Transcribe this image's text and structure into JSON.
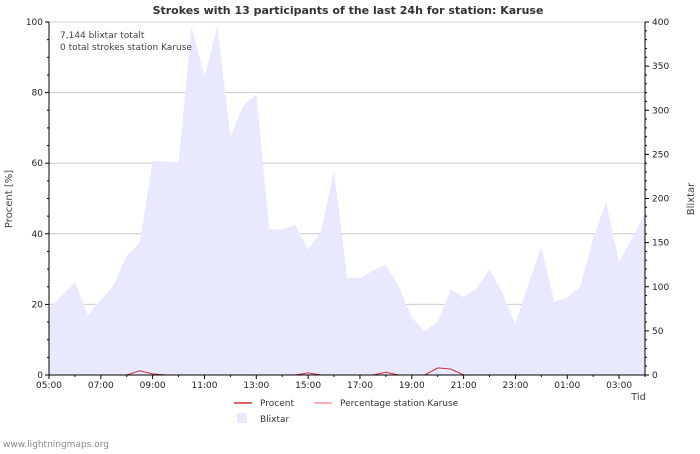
{
  "chart_data": {
    "type": "area",
    "title": "Strokes with 13 participants of the last 24h for station: Karuse",
    "xlabel": "Tid",
    "ylabel_left": "Procent   [%]",
    "ylabel_right": "Blixtar",
    "annotations": [
      "7,144 blixtar totalt",
      "0 total strokes station Karuse"
    ],
    "footer": "www.lightningmaps.org",
    "ylim_left": [
      0,
      100
    ],
    "yticks_left": [
      "0",
      "20",
      "40",
      "60",
      "80",
      "100"
    ],
    "ylim_right": [
      0,
      400
    ],
    "yticks_right": [
      "0",
      "50",
      "100",
      "150",
      "200",
      "250",
      "300",
      "350",
      "400"
    ],
    "x_range_hours": [
      5,
      28
    ],
    "x_ticks": [
      {
        "label": "05:00",
        "hour": 5
      },
      {
        "label": "07:00",
        "hour": 7
      },
      {
        "label": "09:00",
        "hour": 9
      },
      {
        "label": "11:00",
        "hour": 11
      },
      {
        "label": "13:00",
        "hour": 13
      },
      {
        "label": "15:00",
        "hour": 15
      },
      {
        "label": "17:00",
        "hour": 17
      },
      {
        "label": "19:00",
        "hour": 19
      },
      {
        "label": "21:00",
        "hour": 21
      },
      {
        "label": "23:00",
        "hour": 23
      },
      {
        "label": "01:00",
        "hour": 25
      },
      {
        "label": "03:00",
        "hour": 27
      }
    ],
    "series": [
      {
        "name": "Blixtar",
        "axis": "right",
        "color": "#e8e8ff",
        "x": [
          5.0,
          5.5,
          6.0,
          6.5,
          7.0,
          7.5,
          8.0,
          8.5,
          9.0,
          9.5,
          10.0,
          10.5,
          11.0,
          11.5,
          12.0,
          12.5,
          13.0,
          13.5,
          14.0,
          14.5,
          15.0,
          15.5,
          16.0,
          16.5,
          17.0,
          17.5,
          18.0,
          18.5,
          19.0,
          19.5,
          20.0,
          20.5,
          21.0,
          21.5,
          22.0,
          22.5,
          23.0,
          23.5,
          24.0,
          24.5,
          25.0,
          25.5,
          26.0,
          26.5,
          27.0,
          27.5,
          28.0
        ],
        "values": [
          75,
          90,
          105,
          68,
          85,
          102,
          135,
          150,
          242,
          242,
          240,
          395,
          338,
          395,
          270,
          305,
          318,
          165,
          165,
          170,
          142,
          163,
          232,
          110,
          110,
          118,
          125,
          100,
          65,
          50,
          60,
          97,
          88,
          98,
          120,
          93,
          58,
          103,
          145,
          83,
          88,
          100,
          155,
          196,
          128,
          155,
          183
        ]
      },
      {
        "name": "Procent",
        "axis": "left",
        "color": "#cc3333",
        "x": [
          5.0,
          8.0,
          8.5,
          9.0,
          9.5,
          14.5,
          15.0,
          15.5,
          17.5,
          18.0,
          18.5,
          19.5,
          20.0,
          20.5,
          21.0,
          28.0
        ],
        "values": [
          0,
          0,
          1.2,
          0.3,
          0,
          0,
          0.6,
          0,
          0,
          0.8,
          0,
          0,
          2.0,
          1.7,
          0,
          0
        ]
      },
      {
        "name": "Percentage station Karuse",
        "axis": "left",
        "color": "#ff9999",
        "x": [
          5.0,
          28.0
        ],
        "values": [
          0,
          0
        ]
      }
    ],
    "legend": [
      {
        "label": "Procent",
        "color": "#cc3333",
        "kind": "line"
      },
      {
        "label": "Percentage station Karuse",
        "color": "#ff9999",
        "kind": "line"
      },
      {
        "label": "Blixtar",
        "color": "#e8e8ff",
        "kind": "box"
      }
    ]
  }
}
